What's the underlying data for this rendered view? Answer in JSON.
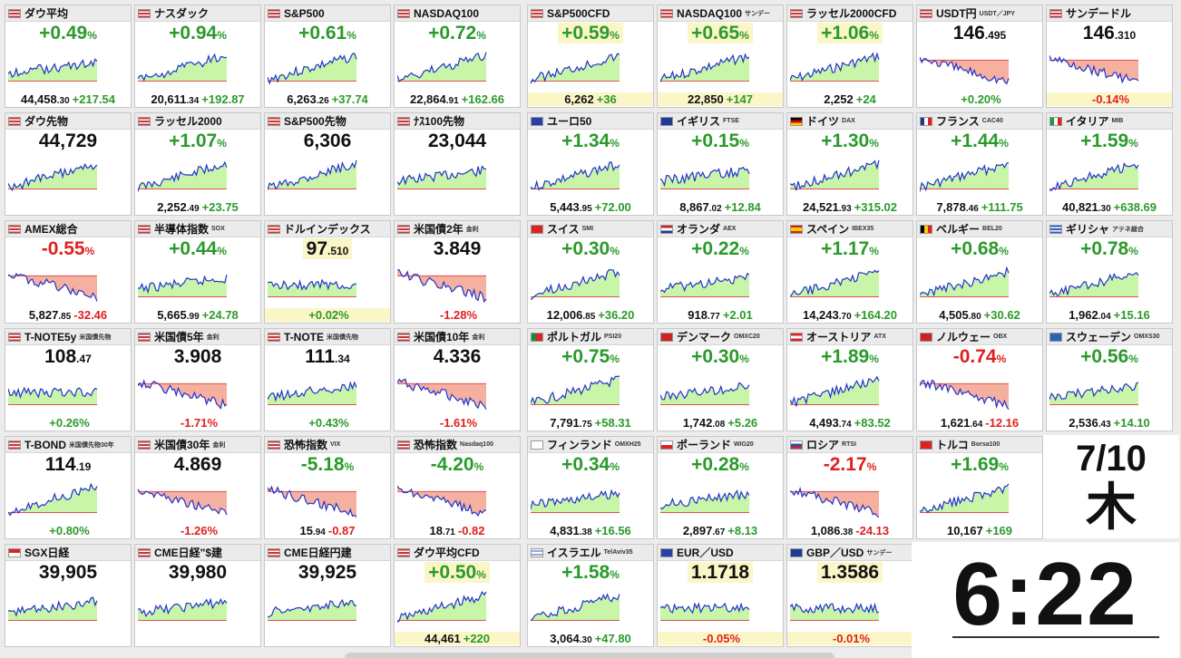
{
  "tiles": [
    {
      "name": "ダウ平均",
      "sub": "",
      "flag": "us",
      "big": "+0.49",
      "pct": "%",
      "dir": "up",
      "int": "44,458",
      "dec": ".30",
      "chg": "+217.54",
      "cdir": "up",
      "shape": "flatup",
      "hl": false,
      "fbg": false
    },
    {
      "name": "ナスダック",
      "sub": "",
      "flag": "us",
      "big": "+0.94",
      "pct": "%",
      "dir": "up",
      "int": "20,611",
      "dec": ".34",
      "chg": "+192.87",
      "cdir": "up",
      "shape": "up",
      "hl": false,
      "fbg": false
    },
    {
      "name": "S&P500",
      "sub": "",
      "flag": "us",
      "big": "+0.61",
      "pct": "%",
      "dir": "up",
      "int": "6,263",
      "dec": ".26",
      "chg": "+37.74",
      "cdir": "up",
      "shape": "up",
      "hl": false,
      "fbg": false
    },
    {
      "name": "NASDAQ100",
      "sub": "",
      "flag": "us",
      "big": "+0.72",
      "pct": "%",
      "dir": "up",
      "int": "22,864",
      "dec": ".91",
      "chg": "+162.66",
      "cdir": "up",
      "shape": "up",
      "hl": false,
      "fbg": false
    },
    {
      "name": "S&P500CFD",
      "sub": "",
      "flag": "us",
      "big": "+0.59",
      "pct": "%",
      "dir": "up",
      "int": "6,262",
      "dec": "",
      "chg": "+36",
      "cdir": "up",
      "shape": "up",
      "hl": true,
      "fbg": true
    },
    {
      "name": "NASDAQ100",
      "sub": "サンデー",
      "flag": "us",
      "big": "+0.65",
      "pct": "%",
      "dir": "up",
      "int": "22,850",
      "dec": "",
      "chg": "+147",
      "cdir": "up",
      "shape": "up",
      "hl": true,
      "fbg": true
    },
    {
      "name": "ラッセル2000CFD",
      "sub": "",
      "flag": "us",
      "big": "+1.06",
      "pct": "%",
      "dir": "up",
      "int": "2,252",
      "dec": "",
      "chg": "+24",
      "cdir": "up",
      "shape": "up",
      "hl": true,
      "fbg": false
    },
    {
      "name": "USDT円",
      "sub": "USDT／JPY",
      "flag": "us",
      "big": "146",
      "pct": ".495",
      "dir": "lvl",
      "int": "",
      "dec": "",
      "chg": "+0.20%",
      "cdir": "up",
      "shape": "down",
      "hl": false,
      "fbg": false
    },
    {
      "name": "サンデードル",
      "sub": "",
      "flag": "us",
      "big": "146",
      "pct": ".310",
      "dir": "lvl",
      "int": "",
      "dec": "",
      "chg": "-0.14%",
      "cdir": "dn",
      "shape": "down",
      "hl": false,
      "fbg": true
    },
    {
      "name": "ダウ先物",
      "sub": "",
      "flag": "us",
      "big": "44,729",
      "pct": "",
      "dir": "lvl",
      "int": "",
      "dec": "",
      "chg": "",
      "cdir": "up",
      "shape": "up",
      "hl": false,
      "fbg": false
    },
    {
      "name": "ラッセル2000",
      "sub": "",
      "flag": "us",
      "big": "+1.07",
      "pct": "%",
      "dir": "up",
      "int": "2,252",
      "dec": ".49",
      "chg": "+23.75",
      "cdir": "up",
      "shape": "up",
      "hl": false,
      "fbg": false
    },
    {
      "name": "S&P500先物",
      "sub": "",
      "flag": "us",
      "big": "6,306",
      "pct": "",
      "dir": "lvl",
      "int": "",
      "dec": "",
      "chg": "",
      "cdir": "up",
      "shape": "up",
      "hl": false,
      "fbg": false
    },
    {
      "name": "ﾅｽ100先物",
      "sub": "",
      "flag": "us",
      "big": "23,044",
      "pct": "",
      "dir": "lvl",
      "int": "",
      "dec": "",
      "chg": "",
      "cdir": "up",
      "shape": "flatup",
      "hl": false,
      "fbg": false
    },
    {
      "name": "ユーロ50",
      "sub": "",
      "flag": "eu",
      "big": "+1.34",
      "pct": "%",
      "dir": "up",
      "int": "5,443",
      "dec": ".95",
      "chg": "+72.00",
      "cdir": "up",
      "shape": "up",
      "hl": false,
      "fbg": false
    },
    {
      "name": "イギリス",
      "sub": "FTSE",
      "flag": "gb",
      "big": "+0.15",
      "pct": "%",
      "dir": "up",
      "int": "8,867",
      "dec": ".02",
      "chg": "+12.84",
      "cdir": "up",
      "shape": "flatup",
      "hl": false,
      "fbg": false
    },
    {
      "name": "ドイツ",
      "sub": "DAX",
      "flag": "de",
      "big": "+1.30",
      "pct": "%",
      "dir": "up",
      "int": "24,521",
      "dec": ".93",
      "chg": "+315.02",
      "cdir": "up",
      "shape": "up",
      "hl": false,
      "fbg": false
    },
    {
      "name": "フランス",
      "sub": "CAC40",
      "flag": "fr",
      "big": "+1.44",
      "pct": "%",
      "dir": "up",
      "int": "7,878",
      "dec": ".46",
      "chg": "+111.75",
      "cdir": "up",
      "shape": "up",
      "hl": false,
      "fbg": false
    },
    {
      "name": "イタリア",
      "sub": "MIB",
      "flag": "it",
      "big": "+1.59",
      "pct": "%",
      "dir": "up",
      "int": "40,821",
      "dec": ".30",
      "chg": "+638.69",
      "cdir": "up",
      "shape": "up",
      "hl": false,
      "fbg": false
    },
    {
      "name": "AMEX総合",
      "sub": "",
      "flag": "us",
      "big": "-0.55",
      "pct": "%",
      "dir": "dn",
      "int": "5,827",
      "dec": ".85",
      "chg": "-32.46",
      "cdir": "dn",
      "shape": "down",
      "hl": false,
      "fbg": false
    },
    {
      "name": "半導体指数",
      "sub": "SOX",
      "flag": "us",
      "big": "+0.44",
      "pct": "%",
      "dir": "up",
      "int": "5,665",
      "dec": ".99",
      "chg": "+24.78",
      "cdir": "up",
      "shape": "flatup",
      "hl": false,
      "fbg": false
    },
    {
      "name": "ドルインデックス",
      "sub": "",
      "flag": "us",
      "big": "97",
      "pct": ".510",
      "dir": "lvl",
      "int": "",
      "dec": "",
      "chg": "+0.02%",
      "cdir": "up",
      "shape": "flat",
      "hl": true,
      "fbg": true
    },
    {
      "name": "米国債2年",
      "sub": "金利",
      "flag": "us",
      "big": "3.849",
      "pct": "",
      "dir": "lvl",
      "int": "",
      "dec": "",
      "chg": "-1.28%",
      "cdir": "dn",
      "shape": "down",
      "hl": false,
      "fbg": false
    },
    {
      "name": "スイス",
      "sub": "SMI",
      "flag": "ch",
      "big": "+0.30",
      "pct": "%",
      "dir": "up",
      "int": "12,006",
      "dec": ".85",
      "chg": "+36.20",
      "cdir": "up",
      "shape": "up",
      "hl": false,
      "fbg": false
    },
    {
      "name": "オランダ",
      "sub": "AEX",
      "flag": "nl",
      "big": "+0.22",
      "pct": "%",
      "dir": "up",
      "int": "918",
      "dec": ".77",
      "chg": "+2.01",
      "cdir": "up",
      "shape": "flatup",
      "hl": false,
      "fbg": false
    },
    {
      "name": "スペイン",
      "sub": "IBEX35",
      "flag": "es",
      "big": "+1.17",
      "pct": "%",
      "dir": "up",
      "int": "14,243",
      "dec": ".70",
      "chg": "+164.20",
      "cdir": "up",
      "shape": "up",
      "hl": false,
      "fbg": false
    },
    {
      "name": "ベルギー",
      "sub": "BEL20",
      "flag": "be",
      "big": "+0.68",
      "pct": "%",
      "dir": "up",
      "int": "4,505",
      "dec": ".80",
      "chg": "+30.62",
      "cdir": "up",
      "shape": "up",
      "hl": false,
      "fbg": false
    },
    {
      "name": "ギリシャ",
      "sub": "アテネ総合",
      "flag": "gr",
      "big": "+0.78",
      "pct": "%",
      "dir": "up",
      "int": "1,962",
      "dec": ".04",
      "chg": "+15.16",
      "cdir": "up",
      "shape": "up",
      "hl": false,
      "fbg": false
    },
    {
      "name": "T-NOTE5y",
      "sub": "米国債先物",
      "flag": "us",
      "big": "108",
      "pct": ".47",
      "dir": "lvl",
      "int": "",
      "dec": "",
      "chg": "+0.26%",
      "cdir": "up",
      "shape": "flat",
      "hl": false,
      "fbg": false
    },
    {
      "name": "米国債5年",
      "sub": "金利",
      "flag": "us",
      "big": "3.908",
      "pct": "",
      "dir": "lvl",
      "int": "",
      "dec": "",
      "chg": "-1.71%",
      "cdir": "dn",
      "shape": "down",
      "hl": false,
      "fbg": false
    },
    {
      "name": "T-NOTE",
      "sub": "米国債先物",
      "flag": "us",
      "big": "111",
      "pct": ".34",
      "dir": "lvl",
      "int": "",
      "dec": "",
      "chg": "+0.43%",
      "cdir": "up",
      "shape": "flatup",
      "hl": false,
      "fbg": false
    },
    {
      "name": "米国債10年",
      "sub": "金利",
      "flag": "us",
      "big": "4.336",
      "pct": "",
      "dir": "lvl",
      "int": "",
      "dec": "",
      "chg": "-1.61%",
      "cdir": "dn",
      "shape": "down",
      "hl": false,
      "fbg": false
    },
    {
      "name": "ポルトガル",
      "sub": "PSI20",
      "flag": "pt",
      "big": "+0.75",
      "pct": "%",
      "dir": "up",
      "int": "7,791",
      "dec": ".75",
      "chg": "+58.31",
      "cdir": "up",
      "shape": "up",
      "hl": false,
      "fbg": false
    },
    {
      "name": "デンマーク",
      "sub": "OMXC20",
      "flag": "dk",
      "big": "+0.30",
      "pct": "%",
      "dir": "up",
      "int": "1,742",
      "dec": ".08",
      "chg": "+5.26",
      "cdir": "up",
      "shape": "flatup",
      "hl": false,
      "fbg": false
    },
    {
      "name": "オーストリア",
      "sub": "ATX",
      "flag": "at",
      "big": "+1.89",
      "pct": "%",
      "dir": "up",
      "int": "4,493",
      "dec": ".74",
      "chg": "+83.52",
      "cdir": "up",
      "shape": "up",
      "hl": false,
      "fbg": false
    },
    {
      "name": "ノルウェー",
      "sub": "OBX",
      "flag": "no",
      "big": "-0.74",
      "pct": "%",
      "dir": "dn",
      "int": "1,621",
      "dec": ".64",
      "chg": "-12.16",
      "cdir": "dn",
      "shape": "down",
      "hl": false,
      "fbg": false
    },
    {
      "name": "スウェーデン",
      "sub": "OMXS30",
      "flag": "se",
      "big": "+0.56",
      "pct": "%",
      "dir": "up",
      "int": "2,536",
      "dec": ".43",
      "chg": "+14.10",
      "cdir": "up",
      "shape": "flatup",
      "hl": false,
      "fbg": false
    },
    {
      "name": "T-BOND",
      "sub": "米国債先物30年",
      "flag": "us",
      "big": "114",
      "pct": ".19",
      "dir": "lvl",
      "int": "",
      "dec": "",
      "chg": "+0.80%",
      "cdir": "up",
      "shape": "up",
      "hl": false,
      "fbg": false
    },
    {
      "name": "米国債30年",
      "sub": "金利",
      "flag": "us",
      "big": "4.869",
      "pct": "",
      "dir": "lvl",
      "int": "",
      "dec": "",
      "chg": "-1.26%",
      "cdir": "dn",
      "shape": "down",
      "hl": false,
      "fbg": false
    },
    {
      "name": "恐怖指数",
      "sub": "VIX",
      "flag": "us",
      "big": "-5.18",
      "pct": "%",
      "dir": "up",
      "int": "15",
      "dec": ".94",
      "chg": "-0.87",
      "cdir": "dn",
      "shape": "down",
      "hl": false,
      "fbg": false
    },
    {
      "name": "恐怖指数",
      "sub": "Nasdaq100",
      "flag": "us",
      "big": "-4.20",
      "pct": "%",
      "dir": "up",
      "int": "18",
      "dec": ".71",
      "chg": "-0.82",
      "cdir": "dn",
      "shape": "down",
      "hl": false,
      "fbg": false
    },
    {
      "name": "フィンランド",
      "sub": "OMXH25",
      "flag": "fi",
      "big": "+0.34",
      "pct": "%",
      "dir": "up",
      "int": "4,831",
      "dec": ".38",
      "chg": "+16.56",
      "cdir": "up",
      "shape": "flatup",
      "hl": false,
      "fbg": false
    },
    {
      "name": "ポーランド",
      "sub": "WIG20",
      "flag": "pl",
      "big": "+0.28",
      "pct": "%",
      "dir": "up",
      "int": "2,897",
      "dec": ".67",
      "chg": "+8.13",
      "cdir": "up",
      "shape": "flatup",
      "hl": false,
      "fbg": false
    },
    {
      "name": "ロシア",
      "sub": "RTSI",
      "flag": "ru",
      "big": "-2.17",
      "pct": "%",
      "dir": "dn",
      "int": "1,086",
      "dec": ".38",
      "chg": "-24.13",
      "cdir": "dn",
      "shape": "down",
      "hl": false,
      "fbg": false
    },
    {
      "name": "トルコ",
      "sub": "Borsa100",
      "flag": "tr",
      "big": "+1.69",
      "pct": "%",
      "dir": "up",
      "int": "10,167",
      "dec": "",
      "chg": "+169",
      "cdir": "up",
      "shape": "up",
      "hl": false,
      "fbg": false
    },
    {
      "name": "SGX日経",
      "sub": "",
      "flag": "sg",
      "big": "39,905",
      "pct": "",
      "dir": "lvl",
      "int": "",
      "dec": "",
      "chg": "",
      "cdir": "up",
      "shape": "flatup",
      "hl": false,
      "fbg": false
    },
    {
      "name": "CME日経\"$建",
      "sub": "",
      "flag": "us",
      "big": "39,980",
      "pct": "",
      "dir": "lvl",
      "int": "",
      "dec": "",
      "chg": "",
      "cdir": "up",
      "shape": "flatup",
      "hl": false,
      "fbg": false
    },
    {
      "name": "CME日経円建",
      "sub": "",
      "flag": "us",
      "big": "39,925",
      "pct": "",
      "dir": "lvl",
      "int": "",
      "dec": "",
      "chg": "",
      "cdir": "up",
      "shape": "flatup",
      "hl": false,
      "fbg": false
    },
    {
      "name": "ダウ平均CFD",
      "sub": "",
      "flag": "us",
      "big": "+0.50",
      "pct": "%",
      "dir": "up",
      "int": "44,461",
      "dec": "",
      "chg": "+220",
      "cdir": "up",
      "shape": "up",
      "hl": true,
      "fbg": true
    },
    {
      "name": "イスラエル",
      "sub": "TelAviv35",
      "flag": "il",
      "big": "+1.58",
      "pct": "%",
      "dir": "up",
      "int": "3,064",
      "dec": ".30",
      "chg": "+47.80",
      "cdir": "up",
      "shape": "up",
      "hl": false,
      "fbg": false
    },
    {
      "name": "EUR／USD",
      "sub": "",
      "flag": "eu",
      "big": "1.1718",
      "pct": "",
      "dir": "lvl",
      "int": "",
      "dec": "",
      "chg": "-0.05%",
      "cdir": "dn",
      "shape": "flat",
      "hl": true,
      "fbg": true
    },
    {
      "name": "GBP／USD",
      "sub": "サンデー",
      "flag": "gb",
      "big": "1.3586",
      "pct": "",
      "dir": "lvl",
      "int": "",
      "dec": "",
      "chg": "-0.01%",
      "cdir": "dn",
      "shape": "flat",
      "hl": true,
      "fbg": true
    }
  ],
  "date": {
    "md": "7/10",
    "wd": "木"
  },
  "clock": {
    "time": "6:22"
  },
  "colors": {
    "up": "#2b9a2b",
    "down": "#e02020",
    "fill_up": "#c8f5a8",
    "fill_dn": "#f5b0a0",
    "line": "#2233cc",
    "highlight": "#fbf6c8"
  }
}
